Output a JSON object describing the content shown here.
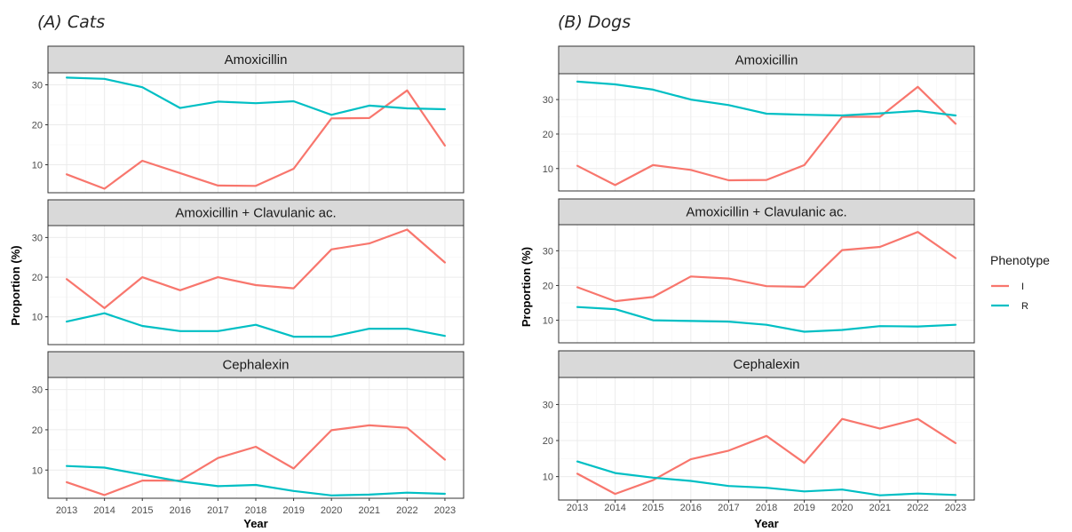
{
  "chart_data": [
    {
      "type": "line",
      "title": "(A)   Cats",
      "xlabel": "Year",
      "ylabel": "Proportion (%)",
      "x": [
        2013,
        2014,
        2015,
        2016,
        2017,
        2018,
        2019,
        2020,
        2021,
        2022,
        2023
      ],
      "xlim": [
        2013,
        2023
      ],
      "ylim": [
        3,
        33
      ],
      "yticks": [
        10,
        20,
        30
      ],
      "grid": true,
      "facets": [
        {
          "label": "Amoxicillin",
          "series": [
            {
              "name": "I",
              "values": [
                7.6,
                4.0,
                11.0,
                7.9,
                4.8,
                4.7,
                9.0,
                21.6,
                21.7,
                28.6,
                14.8
              ]
            },
            {
              "name": "R",
              "values": [
                31.8,
                31.5,
                29.4,
                24.2,
                25.8,
                25.4,
                25.9,
                22.5,
                24.8,
                24.1,
                23.9
              ]
            }
          ]
        },
        {
          "label": "Amoxicillin + Clavulanic ac.",
          "series": [
            {
              "name": "I",
              "values": [
                19.5,
                12.2,
                20.0,
                16.7,
                20.0,
                18.0,
                17.2,
                27.0,
                28.5,
                32.0,
                23.7
              ]
            },
            {
              "name": "R",
              "values": [
                8.8,
                10.9,
                7.7,
                6.4,
                6.4,
                8.0,
                5.0,
                5.0,
                7.0,
                7.0,
                5.2
              ]
            }
          ]
        },
        {
          "label": "Cephalexin",
          "series": [
            {
              "name": "I",
              "values": [
                7.0,
                3.8,
                7.4,
                7.4,
                13.0,
                15.8,
                10.4,
                19.9,
                21.1,
                20.5,
                12.6
              ]
            },
            {
              "name": "R",
              "values": [
                11.0,
                10.6,
                8.9,
                7.2,
                6.0,
                6.3,
                4.8,
                3.7,
                3.9,
                4.4,
                4.1
              ]
            }
          ]
        }
      ]
    },
    {
      "type": "line",
      "title": "(B) Dogs",
      "xlabel": "Year",
      "ylabel": "Proportion (%)",
      "x": [
        2013,
        2014,
        2015,
        2016,
        2017,
        2018,
        2019,
        2020,
        2021,
        2022,
        2023
      ],
      "xlim": [
        2013,
        2023
      ],
      "ylim": [
        3.5,
        37.5
      ],
      "yticks": [
        10,
        20,
        30
      ],
      "grid": true,
      "facets": [
        {
          "label": "Amoxicillin",
          "series": [
            {
              "name": "I",
              "values": [
                10.8,
                5.2,
                11.0,
                9.6,
                6.6,
                6.7,
                11.0,
                25.0,
                25.0,
                33.7,
                23.0
              ]
            },
            {
              "name": "R",
              "values": [
                35.2,
                34.4,
                32.9,
                30.0,
                28.4,
                25.9,
                25.6,
                25.4,
                26.0,
                26.7,
                25.4
              ]
            }
          ]
        },
        {
          "label": "Amoxicillin + Clavulanic ac.",
          "series": [
            {
              "name": "I",
              "values": [
                19.5,
                15.5,
                16.7,
                22.6,
                22.0,
                19.8,
                19.6,
                30.2,
                31.1,
                35.4,
                27.9
              ]
            },
            {
              "name": "R",
              "values": [
                13.8,
                13.2,
                10.0,
                9.8,
                9.6,
                8.7,
                6.7,
                7.2,
                8.3,
                8.2,
                8.7
              ]
            }
          ]
        },
        {
          "label": "Cephalexin",
          "series": [
            {
              "name": "I",
              "values": [
                10.8,
                5.2,
                9.0,
                14.8,
                17.2,
                21.3,
                13.8,
                26.0,
                23.3,
                26.0,
                19.3
              ]
            },
            {
              "name": "R",
              "values": [
                14.2,
                11.0,
                9.7,
                8.8,
                7.4,
                6.9,
                5.9,
                6.4,
                4.8,
                5.3,
                4.9
              ]
            }
          ]
        }
      ]
    }
  ],
  "legend": {
    "title": "Phenotype",
    "placement": "right",
    "items": [
      {
        "label": "I",
        "color": "#F8766D"
      },
      {
        "label": "R",
        "color": "#00BFC4"
      }
    ]
  },
  "colors": {
    "strip_bg": "#D9D9D9",
    "panel_border": "#333333",
    "grid_major": "#EBEBEB",
    "grid_minor": "#F5F5F5"
  }
}
